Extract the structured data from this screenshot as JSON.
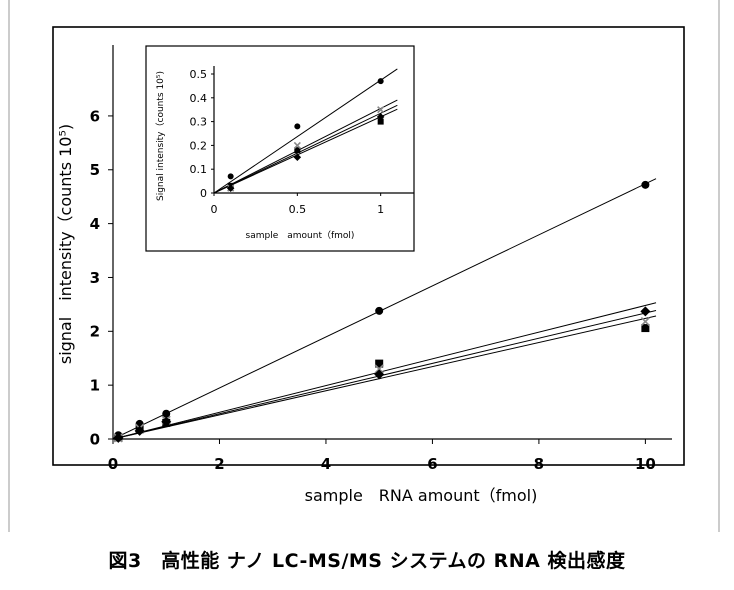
{
  "chart_data": [
    {
      "type": "scatter",
      "title": "",
      "xlabel": "sample　RNA amount（fmol)",
      "ylabel": "signal　intensity（counts 10⁵)",
      "xlim": [
        0,
        10.5
      ],
      "ylim": [
        0,
        6.5
      ],
      "x_ticks": [
        0,
        2,
        4,
        6,
        8,
        10
      ],
      "y_ticks": [
        0,
        1,
        2,
        3,
        4,
        5,
        6
      ],
      "grid": false,
      "legend": "none",
      "series": [
        {
          "marker": "circle",
          "x": [
            0.1,
            0.5,
            1,
            5,
            10
          ],
          "y": [
            0.07,
            0.28,
            0.47,
            2.38,
            4.72
          ],
          "fit_slope": 0.474
        },
        {
          "marker": "square",
          "x": [
            0.1,
            0.5,
            1,
            5,
            10
          ],
          "y": [
            0.03,
            0.18,
            0.3,
            1.4,
            2.06
          ],
          "fit_slope": 0.248
        },
        {
          "marker": "cross",
          "x": [
            0.1,
            0.5,
            1,
            5,
            10
          ],
          "y": [
            0.02,
            0.2,
            0.35,
            1.3,
            2.18
          ],
          "fit_slope": 0.234
        },
        {
          "marker": "diamond",
          "x": [
            0.1,
            0.5,
            1,
            5,
            10
          ],
          "y": [
            0.02,
            0.15,
            0.32,
            1.2,
            2.37
          ],
          "fit_slope": 0.224
        }
      ]
    },
    {
      "type": "scatter",
      "title": "",
      "xlabel": "sample　amount（fmol)",
      "ylabel": "Signal intensity（counts 10⁵)",
      "xlim": [
        0,
        1.2
      ],
      "ylim": [
        0,
        0.5
      ],
      "x_ticks": [
        0,
        0.5,
        1
      ],
      "y_ticks": [
        0,
        0.1,
        0.2,
        0.3,
        0.4,
        0.5
      ],
      "grid": false,
      "legend": "none",
      "series": [
        {
          "marker": "circle",
          "x": [
            0.1,
            0.5,
            1
          ],
          "y": [
            0.07,
            0.28,
            0.47
          ],
          "fit_slope": 0.474
        },
        {
          "marker": "square",
          "x": [
            0.1,
            0.5,
            1
          ],
          "y": [
            0.03,
            0.18,
            0.3
          ],
          "fit_slope": 0.32
        },
        {
          "marker": "cross",
          "x": [
            0.1,
            0.5,
            1
          ],
          "y": [
            0.02,
            0.2,
            0.35
          ],
          "fit_slope": 0.355
        },
        {
          "marker": "diamond",
          "x": [
            0.1,
            0.5,
            1
          ],
          "y": [
            0.02,
            0.15,
            0.32
          ],
          "fit_slope": 0.335
        }
      ]
    }
  ],
  "caption": "図3　高性能 ナノ LC-MS/MS システムの RNA 検出感度"
}
